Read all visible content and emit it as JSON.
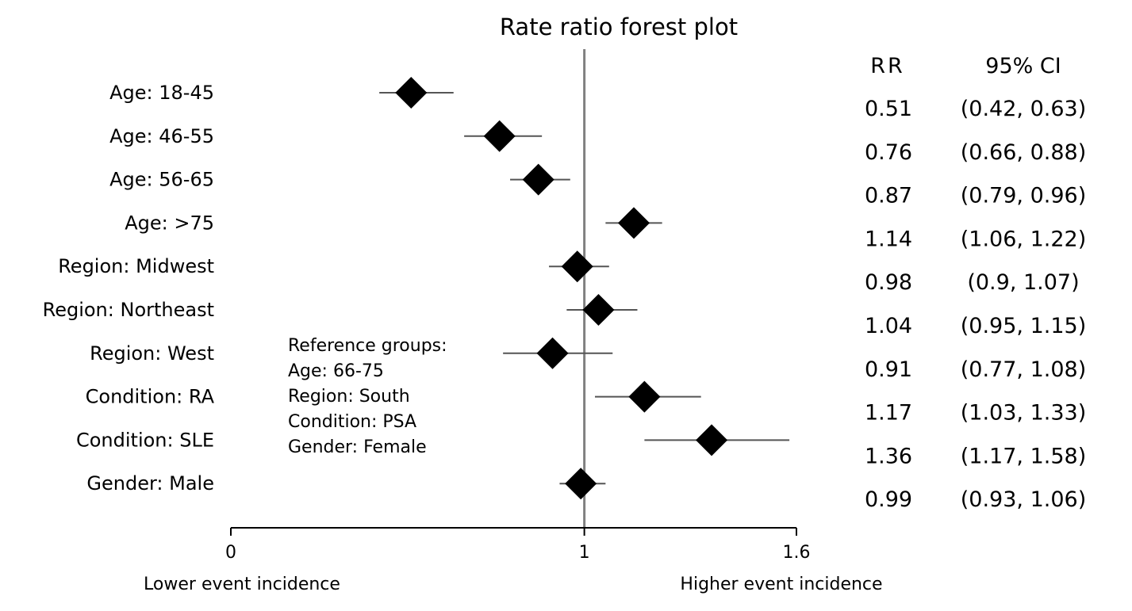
{
  "chart_data": {
    "type": "forest",
    "title": "Rate ratio forest plot",
    "xlim": [
      0,
      1.6
    ],
    "x_ticks": [
      {
        "value": 0,
        "label": "0"
      },
      {
        "value": 1,
        "label": "1"
      },
      {
        "value": 1.6,
        "label": "1.6"
      }
    ],
    "reference_line": 1,
    "x_left_label": "Lower event incidence",
    "x_right_label": "Higher event incidence",
    "column_headers": {
      "rr": "RR",
      "ci": "95% CI"
    },
    "rows": [
      {
        "label": "Age: 18-45",
        "rr": 0.51,
        "ci_low": 0.42,
        "ci_high": 0.63,
        "rr_text": "0.51",
        "ci_text": "(0.42, 0.63)"
      },
      {
        "label": "Age: 46-55",
        "rr": 0.76,
        "ci_low": 0.66,
        "ci_high": 0.88,
        "rr_text": "0.76",
        "ci_text": "(0.66, 0.88)"
      },
      {
        "label": "Age: 56-65",
        "rr": 0.87,
        "ci_low": 0.79,
        "ci_high": 0.96,
        "rr_text": "0.87",
        "ci_text": "(0.79, 0.96)"
      },
      {
        "label": "Age: >75",
        "rr": 1.14,
        "ci_low": 1.06,
        "ci_high": 1.22,
        "rr_text": "1.14",
        "ci_text": "(1.06, 1.22)"
      },
      {
        "label": "Region: Midwest",
        "rr": 0.98,
        "ci_low": 0.9,
        "ci_high": 1.07,
        "rr_text": "0.98",
        "ci_text": "(0.9, 1.07)"
      },
      {
        "label": "Region: Northeast",
        "rr": 1.04,
        "ci_low": 0.95,
        "ci_high": 1.15,
        "rr_text": "1.04",
        "ci_text": "(0.95, 1.15)"
      },
      {
        "label": "Region: West",
        "rr": 0.91,
        "ci_low": 0.77,
        "ci_high": 1.08,
        "rr_text": "0.91",
        "ci_text": "(0.77, 1.08)"
      },
      {
        "label": "Condition: RA",
        "rr": 1.17,
        "ci_low": 1.03,
        "ci_high": 1.33,
        "rr_text": "1.17",
        "ci_text": "(1.03, 1.33)"
      },
      {
        "label": "Condition: SLE",
        "rr": 1.36,
        "ci_low": 1.17,
        "ci_high": 1.58,
        "rr_text": "1.36",
        "ci_text": "(1.17, 1.58)"
      },
      {
        "label": "Gender: Male",
        "rr": 0.99,
        "ci_low": 0.93,
        "ci_high": 1.06,
        "rr_text": "0.99",
        "ci_text": "(0.93, 1.06)"
      }
    ],
    "reference_groups": [
      "Reference groups:",
      "Age: 66-75",
      "Region: South",
      "Condition: PSA",
      "Gender: Female"
    ],
    "colors": {
      "marker": "#000000",
      "ci_line": "#555555",
      "ref_line": "#808080",
      "axis": "#000000"
    }
  }
}
